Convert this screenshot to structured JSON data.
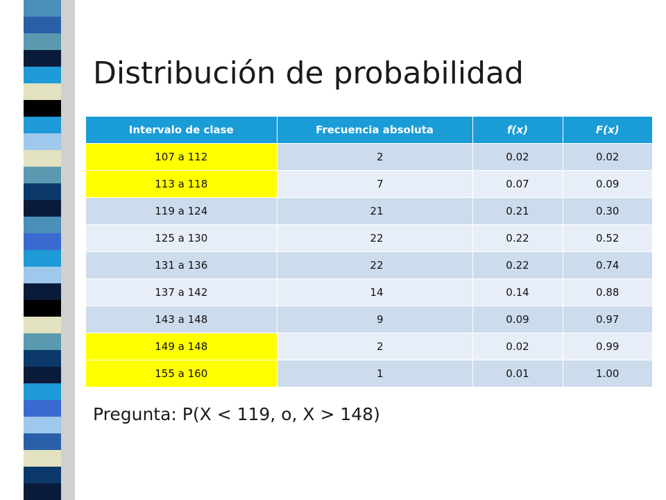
{
  "slide": {
    "title": "Distribución de probabilidad",
    "question": "Pregunta: P(X < 119, o, X > 148)"
  },
  "colors": {
    "header_bg": "#1a9cd6",
    "row_odd": "#cddcec",
    "row_even": "#e8eef7",
    "highlight": "#ffff00"
  },
  "table": {
    "headers": [
      "Intervalo de clase",
      "Frecuencia absoluta",
      "f(x)",
      "F(x)"
    ],
    "rows": [
      {
        "interval": "107 a 112",
        "freq": "2",
        "fx": "0.02",
        "Fx": "0.02",
        "highlight": true
      },
      {
        "interval": "113 a 118",
        "freq": "7",
        "fx": "0.07",
        "Fx": "0.09",
        "highlight": true
      },
      {
        "interval": "119 a 124",
        "freq": "21",
        "fx": "0.21",
        "Fx": "0.30",
        "highlight": false
      },
      {
        "interval": "125 a 130",
        "freq": "22",
        "fx": "0.22",
        "Fx": "0.52",
        "highlight": false
      },
      {
        "interval": "131 a 136",
        "freq": "22",
        "fx": "0.22",
        "Fx": "0.74",
        "highlight": false
      },
      {
        "interval": "137 a 142",
        "freq": "14",
        "fx": "0.14",
        "Fx": "0.88",
        "highlight": false
      },
      {
        "interval": "143 a 148",
        "freq": "9",
        "fx": "0.09",
        "Fx": "0.97",
        "highlight": false
      },
      {
        "interval": "149 a 148",
        "freq": "2",
        "fx": "0.02",
        "Fx": "0.99",
        "highlight": true
      },
      {
        "interval": "155 a 160",
        "freq": "1",
        "fx": "0.01",
        "Fx": "1.00",
        "highlight": true
      }
    ]
  }
}
